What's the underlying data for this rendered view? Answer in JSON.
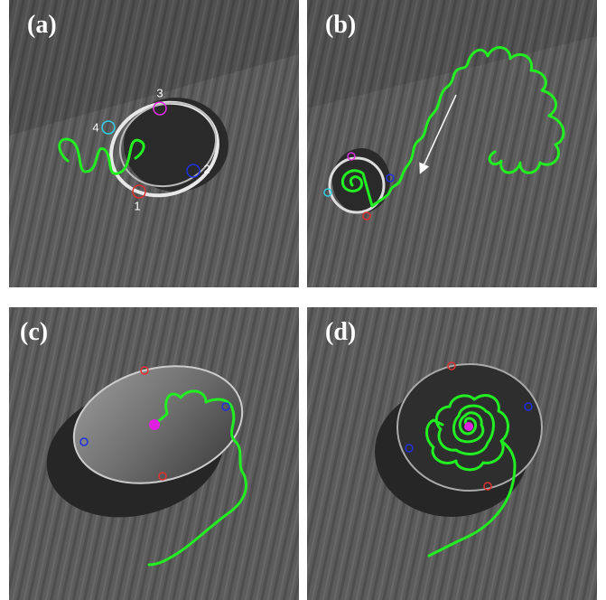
{
  "panels": [
    {
      "label": "(a)",
      "markers": [
        "1",
        "2",
        "3",
        "4"
      ]
    },
    {
      "label": "(b)"
    },
    {
      "label": "(c)"
    },
    {
      "label": "(d)"
    }
  ]
}
